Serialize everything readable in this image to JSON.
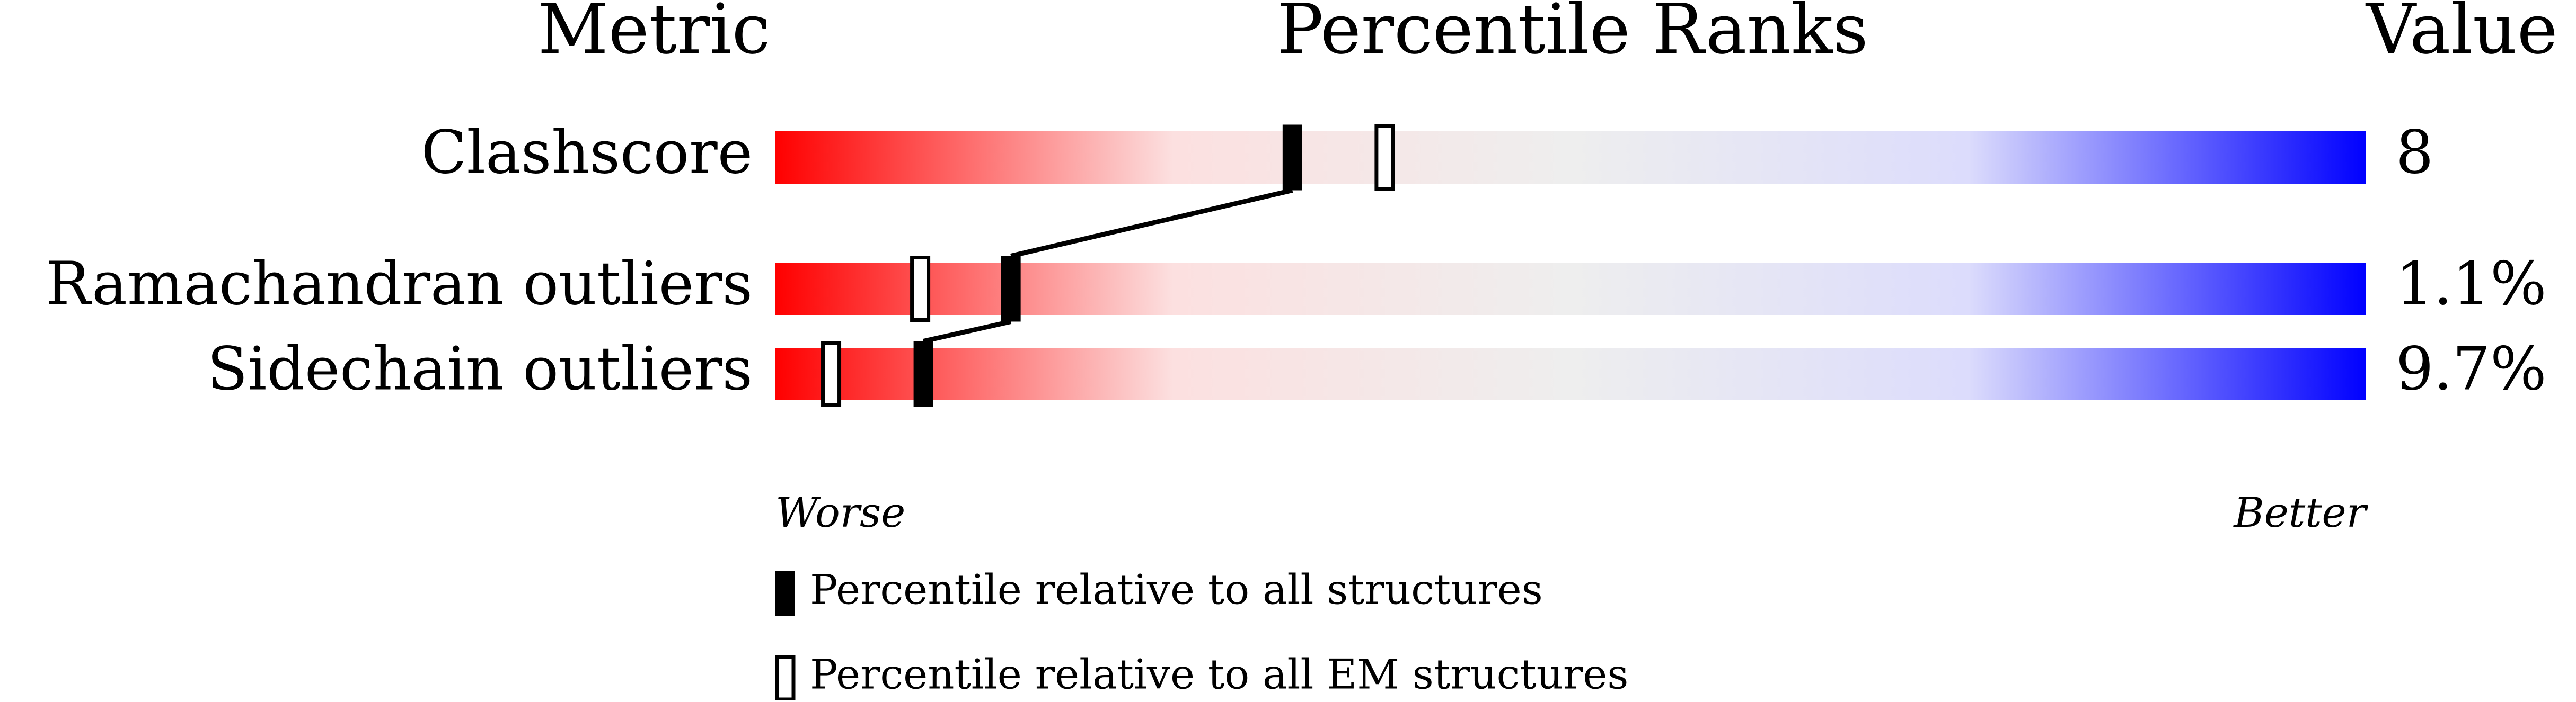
{
  "chart_data": {
    "type": "percentile-slider",
    "headers": [
      "Metric",
      "Percentile Ranks",
      "Value"
    ],
    "categories": [
      "Clashscore",
      "Ramachandran outliers",
      "Sidechain outliers"
    ],
    "metric_values": [
      "8",
      "1.1%",
      "9.7%"
    ],
    "series": [
      {
        "name": "Percentile relative to all structures",
        "color": "#000000",
        "filled": true,
        "values": [
          32.5,
          14.8,
          9.3
        ]
      },
      {
        "name": "Percentile relative to all EM structures",
        "color": "#000000",
        "filled": false,
        "values": [
          38.3,
          9.1,
          3.5
        ]
      }
    ],
    "xlim": [
      0,
      100
    ],
    "axis_ends": [
      "Worse",
      "Better"
    ],
    "gradient": [
      "#ff0000",
      "#fce0e0",
      "#eeeeee",
      "#dcdcfc",
      "#0000ff"
    ]
  }
}
